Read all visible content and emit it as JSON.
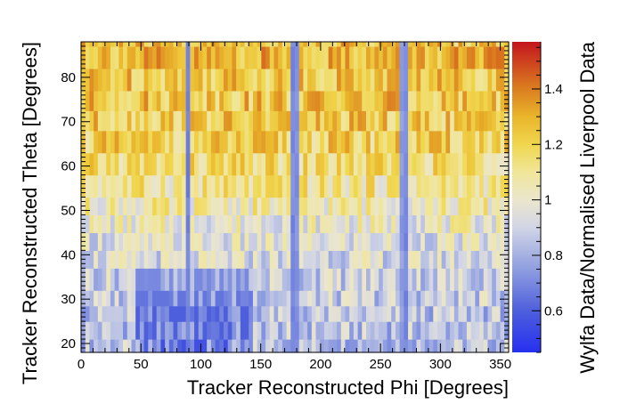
{
  "chart_data": {
    "type": "heatmap",
    "title": "",
    "xlabel": "Tracker Reconstructed Phi [Degrees]",
    "ylabel": "Tracker Reconstructed Theta [Degrees]",
    "zlabel": "Wylfa Data/Normalised Liverpool Data",
    "xlim": [
      0,
      357
    ],
    "ylim": [
      18,
      88
    ],
    "zlim": [
      0.45,
      1.57
    ],
    "xticks": [
      "0",
      "50",
      "100",
      "150",
      "200",
      "250",
      "300",
      "350"
    ],
    "yticks": [
      "20",
      "30",
      "40",
      "50",
      "60",
      "70",
      "80"
    ],
    "zticks": [
      "0.6",
      "0.8",
      "1",
      "1.2",
      "1.4"
    ],
    "x_bin_width": 3.5,
    "y_bins": [
      18,
      21,
      25,
      28.5,
      32,
      37,
      41,
      45,
      49,
      53,
      58,
      63,
      68,
      72.5,
      77,
      82,
      87,
      88
    ],
    "row_summary": [
      {
        "theta_range": [
          18,
          21
        ],
        "typical_ratio": 0.85,
        "min_ratio": 0.55,
        "max_ratio": 1.3
      },
      {
        "theta_range": [
          21,
          25
        ],
        "typical_ratio": 0.85,
        "min_ratio": 0.6,
        "max_ratio": 1.25
      },
      {
        "theta_range": [
          25,
          28.5
        ],
        "typical_ratio": 0.85,
        "min_ratio": 0.6,
        "max_ratio": 1.25
      },
      {
        "theta_range": [
          28.5,
          32
        ],
        "typical_ratio": 0.88,
        "min_ratio": 0.65,
        "max_ratio": 1.25
      },
      {
        "theta_range": [
          32,
          37
        ],
        "typical_ratio": 0.9,
        "min_ratio": 0.7,
        "max_ratio": 1.25
      },
      {
        "theta_range": [
          37,
          41
        ],
        "typical_ratio": 0.93,
        "min_ratio": 0.7,
        "max_ratio": 1.25
      },
      {
        "theta_range": [
          41,
          45
        ],
        "typical_ratio": 0.95,
        "min_ratio": 0.72,
        "max_ratio": 1.25
      },
      {
        "theta_range": [
          45,
          49
        ],
        "typical_ratio": 1.0,
        "min_ratio": 0.75,
        "max_ratio": 1.25
      },
      {
        "theta_range": [
          49,
          53
        ],
        "typical_ratio": 1.05,
        "min_ratio": 0.75,
        "max_ratio": 1.25
      },
      {
        "theta_range": [
          53,
          58
        ],
        "typical_ratio": 1.1,
        "min_ratio": 0.8,
        "max_ratio": 1.28
      },
      {
        "theta_range": [
          58,
          63
        ],
        "typical_ratio": 1.15,
        "min_ratio": 0.85,
        "max_ratio": 1.3
      },
      {
        "theta_range": [
          63,
          68
        ],
        "typical_ratio": 1.2,
        "min_ratio": 0.85,
        "max_ratio": 1.35
      },
      {
        "theta_range": [
          68,
          72.5
        ],
        "typical_ratio": 1.22,
        "min_ratio": 0.85,
        "max_ratio": 1.45
      },
      {
        "theta_range": [
          72.5,
          77
        ],
        "typical_ratio": 1.25,
        "min_ratio": 0.85,
        "max_ratio": 1.45
      },
      {
        "theta_range": [
          77,
          82
        ],
        "typical_ratio": 1.25,
        "min_ratio": 0.85,
        "max_ratio": 1.5
      },
      {
        "theta_range": [
          82,
          87
        ],
        "typical_ratio": 1.28,
        "min_ratio": 0.9,
        "max_ratio": 1.55
      },
      {
        "theta_range": [
          87,
          88
        ],
        "typical_ratio": 1.25,
        "min_ratio": 0.9,
        "max_ratio": 1.5
      }
    ],
    "column_features": [
      {
        "phi": 88,
        "ratio": 0.7
      },
      {
        "phi": 90,
        "ratio": 0.68
      },
      {
        "phi": 178,
        "ratio": 0.7
      },
      {
        "phi": 180,
        "ratio": 0.72
      },
      {
        "phi": 268,
        "ratio": 0.75
      },
      {
        "phi": 270,
        "ratio": 0.7
      }
    ],
    "colormap": [
      {
        "z": 0.45,
        "color": "#2630f0"
      },
      {
        "z": 0.6,
        "color": "#4e5fdc"
      },
      {
        "z": 0.75,
        "color": "#8f9ee0"
      },
      {
        "z": 0.9,
        "color": "#d1d5e5"
      },
      {
        "z": 1.0,
        "color": "#ebe6cc"
      },
      {
        "z": 1.1,
        "color": "#f0e69a"
      },
      {
        "z": 1.2,
        "color": "#f0d64e"
      },
      {
        "z": 1.3,
        "color": "#e9b52b"
      },
      {
        "z": 1.42,
        "color": "#d8731f"
      },
      {
        "z": 1.57,
        "color": "#c4141e"
      }
    ]
  }
}
